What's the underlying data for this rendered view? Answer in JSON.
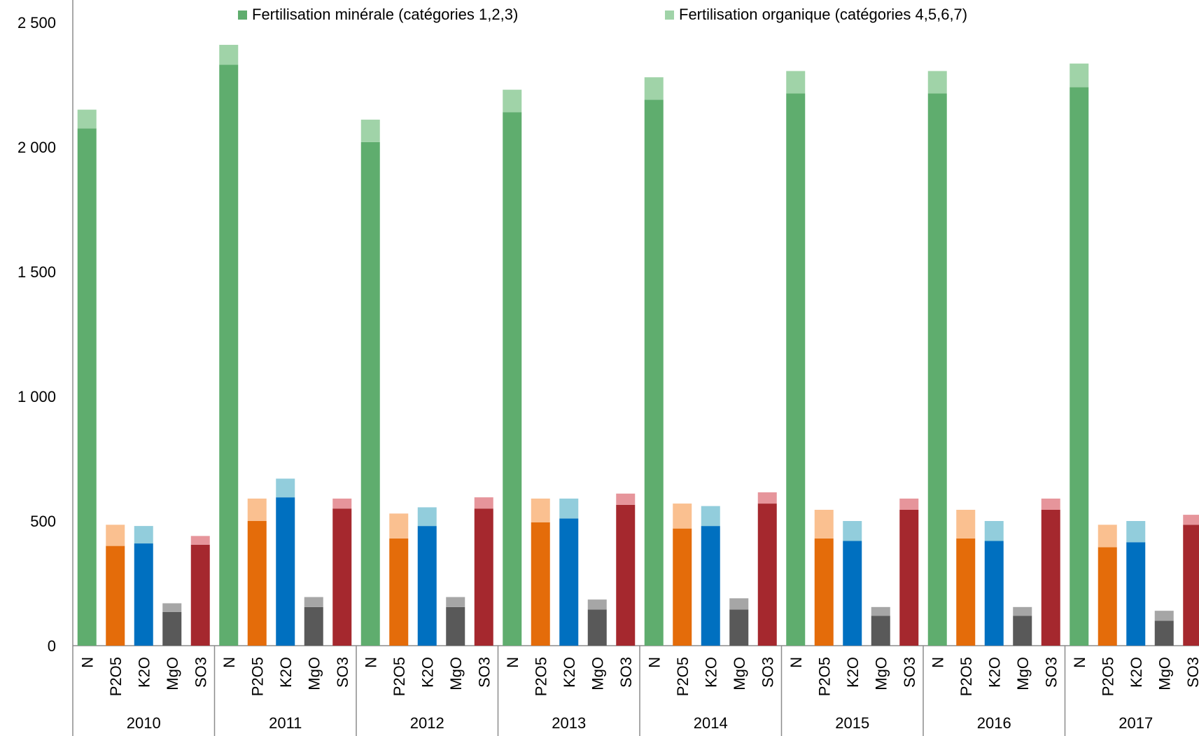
{
  "chart_data": {
    "type": "bar",
    "stacked": true,
    "legend_position": "top",
    "grid": false,
    "ylim": [
      0,
      2500
    ],
    "yticks": [
      0,
      500,
      1000,
      1500,
      2000,
      2500
    ],
    "ytick_labels": [
      "0",
      "500",
      "1 000",
      "1 500",
      "2 000",
      "2 500"
    ],
    "groups": [
      "2010",
      "2011",
      "2012",
      "2013",
      "2014",
      "2015",
      "2016",
      "2017"
    ],
    "categories": [
      "N",
      "P2O5",
      "K2O",
      "MgO",
      "SO3"
    ],
    "legend": [
      {
        "name": "Fertilisation minérale (catégories 1,2,3)",
        "color": "#5fad6e"
      },
      {
        "name": "Fertilisation organique (catégories 4,5,6,7)",
        "color": "#a0d3a8"
      }
    ],
    "colors": {
      "N": {
        "mineral": "#5fad6e",
        "organic": "#a0d3a8"
      },
      "P2O5": {
        "mineral": "#e46c0a",
        "organic": "#fac090"
      },
      "K2O": {
        "mineral": "#0070c0",
        "organic": "#92cddc"
      },
      "MgO": {
        "mineral": "#595959",
        "organic": "#a6a6a6"
      },
      "SO3": {
        "mineral": "#a5282e",
        "organic": "#e6959b"
      }
    },
    "series": [
      {
        "name": "Fertilisation minérale (catégories 1,2,3)",
        "values": [
          [
            2075,
            400,
            410,
            135,
            405
          ],
          [
            2330,
            500,
            595,
            155,
            550
          ],
          [
            2020,
            430,
            480,
            155,
            550
          ],
          [
            2140,
            495,
            510,
            145,
            565
          ],
          [
            2190,
            470,
            480,
            145,
            570
          ],
          [
            2215,
            430,
            420,
            120,
            545
          ],
          [
            2215,
            430,
            420,
            120,
            545
          ],
          [
            2240,
            395,
            415,
            100,
            485
          ]
        ]
      },
      {
        "name": "Fertilisation organique (catégories 4,5,6,7)",
        "values": [
          [
            75,
            85,
            70,
            35,
            35
          ],
          [
            80,
            90,
            75,
            40,
            40
          ],
          [
            90,
            100,
            75,
            40,
            45
          ],
          [
            90,
            95,
            80,
            40,
            45
          ],
          [
            90,
            100,
            80,
            45,
            45
          ],
          [
            90,
            115,
            80,
            35,
            45
          ],
          [
            90,
            115,
            80,
            35,
            45
          ],
          [
            95,
            90,
            85,
            40,
            40
          ]
        ]
      }
    ]
  }
}
